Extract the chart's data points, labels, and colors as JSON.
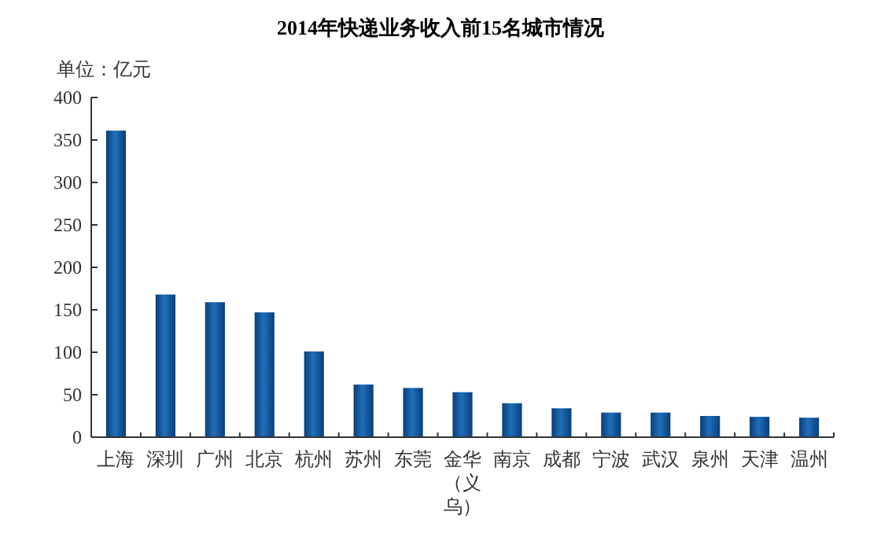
{
  "chart_data": {
    "type": "bar",
    "title": "2014年快递业务收入前15名城市情况",
    "ylabel": "单位：亿元",
    "categories": [
      "上海",
      "深圳",
      "广州",
      "北京",
      "杭州",
      "苏州",
      "东莞",
      "金华（义乌）",
      "南京",
      "成都",
      "宁波",
      "武汉",
      "泉州",
      "天津",
      "温州"
    ],
    "values": [
      361,
      168,
      159,
      147,
      101,
      62,
      58,
      53,
      40,
      34,
      29,
      29,
      25,
      24,
      23
    ],
    "color": "#1f6fba",
    "ylim": [
      0,
      400
    ],
    "yticks": [
      0,
      50,
      100,
      150,
      200,
      250,
      300,
      350,
      400
    ],
    "grid": false
  }
}
